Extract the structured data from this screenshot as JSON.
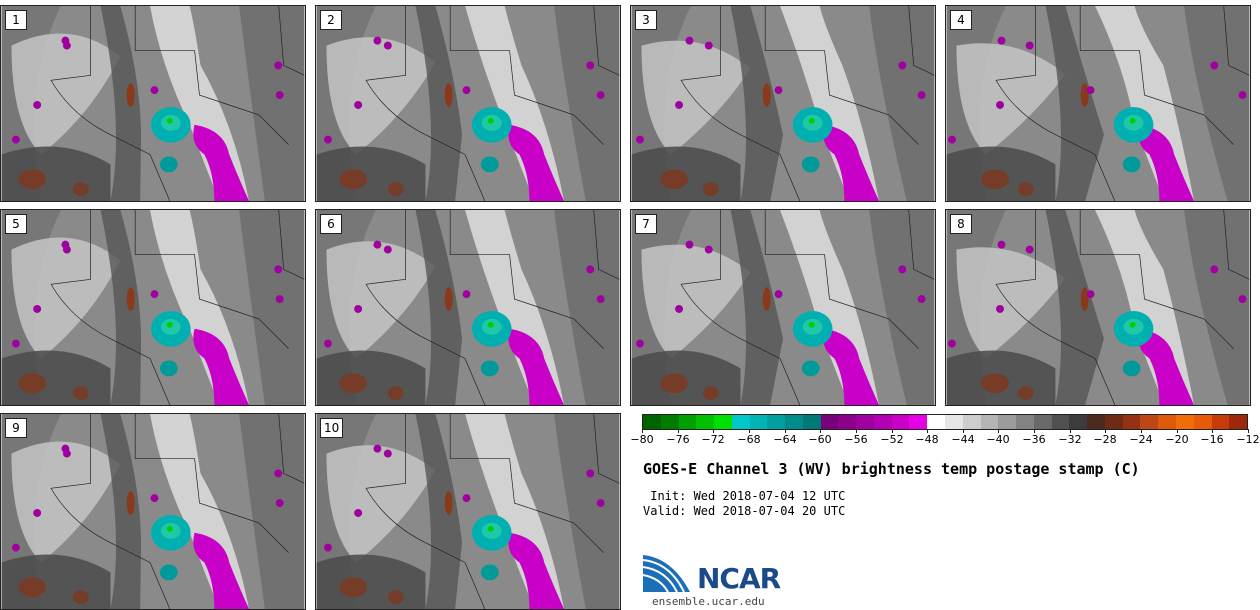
{
  "panels": [
    "1",
    "2",
    "3",
    "4",
    "5",
    "6",
    "7",
    "8",
    "9",
    "10"
  ],
  "colorbar": {
    "colors": [
      "#006400",
      "#007d00",
      "#00a000",
      "#00c000",
      "#00e000",
      "#00c8c8",
      "#00b4b4",
      "#00a0a0",
      "#008c8c",
      "#007878",
      "#780078",
      "#8c008c",
      "#a000a0",
      "#b400b4",
      "#c800c8",
      "#e600e6",
      "#ffffff",
      "#e6e6e6",
      "#cdcdcd",
      "#b4b4b4",
      "#9b9b9b",
      "#828282",
      "#696969",
      "#505050",
      "#3c3c3c",
      "#4b2b1f",
      "#6e2c14",
      "#963214",
      "#be4614",
      "#dc5a0a",
      "#f06e0a",
      "#e65a0a",
      "#c83c0a",
      "#a0280a"
    ],
    "tick_labels": [
      "−80",
      "−76",
      "−72",
      "−68",
      "−64",
      "−60",
      "−56",
      "−52",
      "−48",
      "−44",
      "−40",
      "−36",
      "−32",
      "−28",
      "−24",
      "−20",
      "−16",
      "−12"
    ],
    "min": -80,
    "max": -12
  },
  "title": "GOES-E Channel 3 (WV) brightness temp postage stamp (C)",
  "init": " Init: Wed 2018-07-04 12 UTC",
  "valid": "Valid: Wed 2018-07-04 20 UTC",
  "logo": {
    "text": "NCAR",
    "url": "ensemble.ucar.edu"
  }
}
